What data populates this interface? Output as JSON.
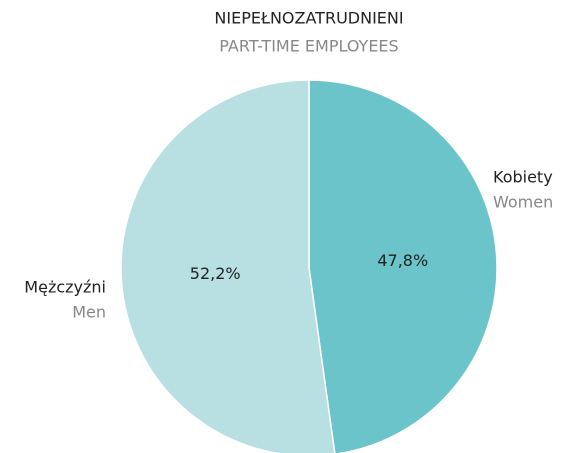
{
  "chart_data": {
    "type": "pie",
    "title": "NIEPEŁNOZATRUDNIENI",
    "subtitle": "PART-TIME EMPLOYEES",
    "categories": [
      "Kobiety",
      "Mężczyźni"
    ],
    "categories_en": [
      "Women",
      "Men"
    ],
    "values": [
      47.8,
      52.2
    ],
    "value_labels": [
      "47,8%",
      "52,2%"
    ],
    "colors": [
      "#6bc4c9",
      "#b8dfe2"
    ]
  }
}
